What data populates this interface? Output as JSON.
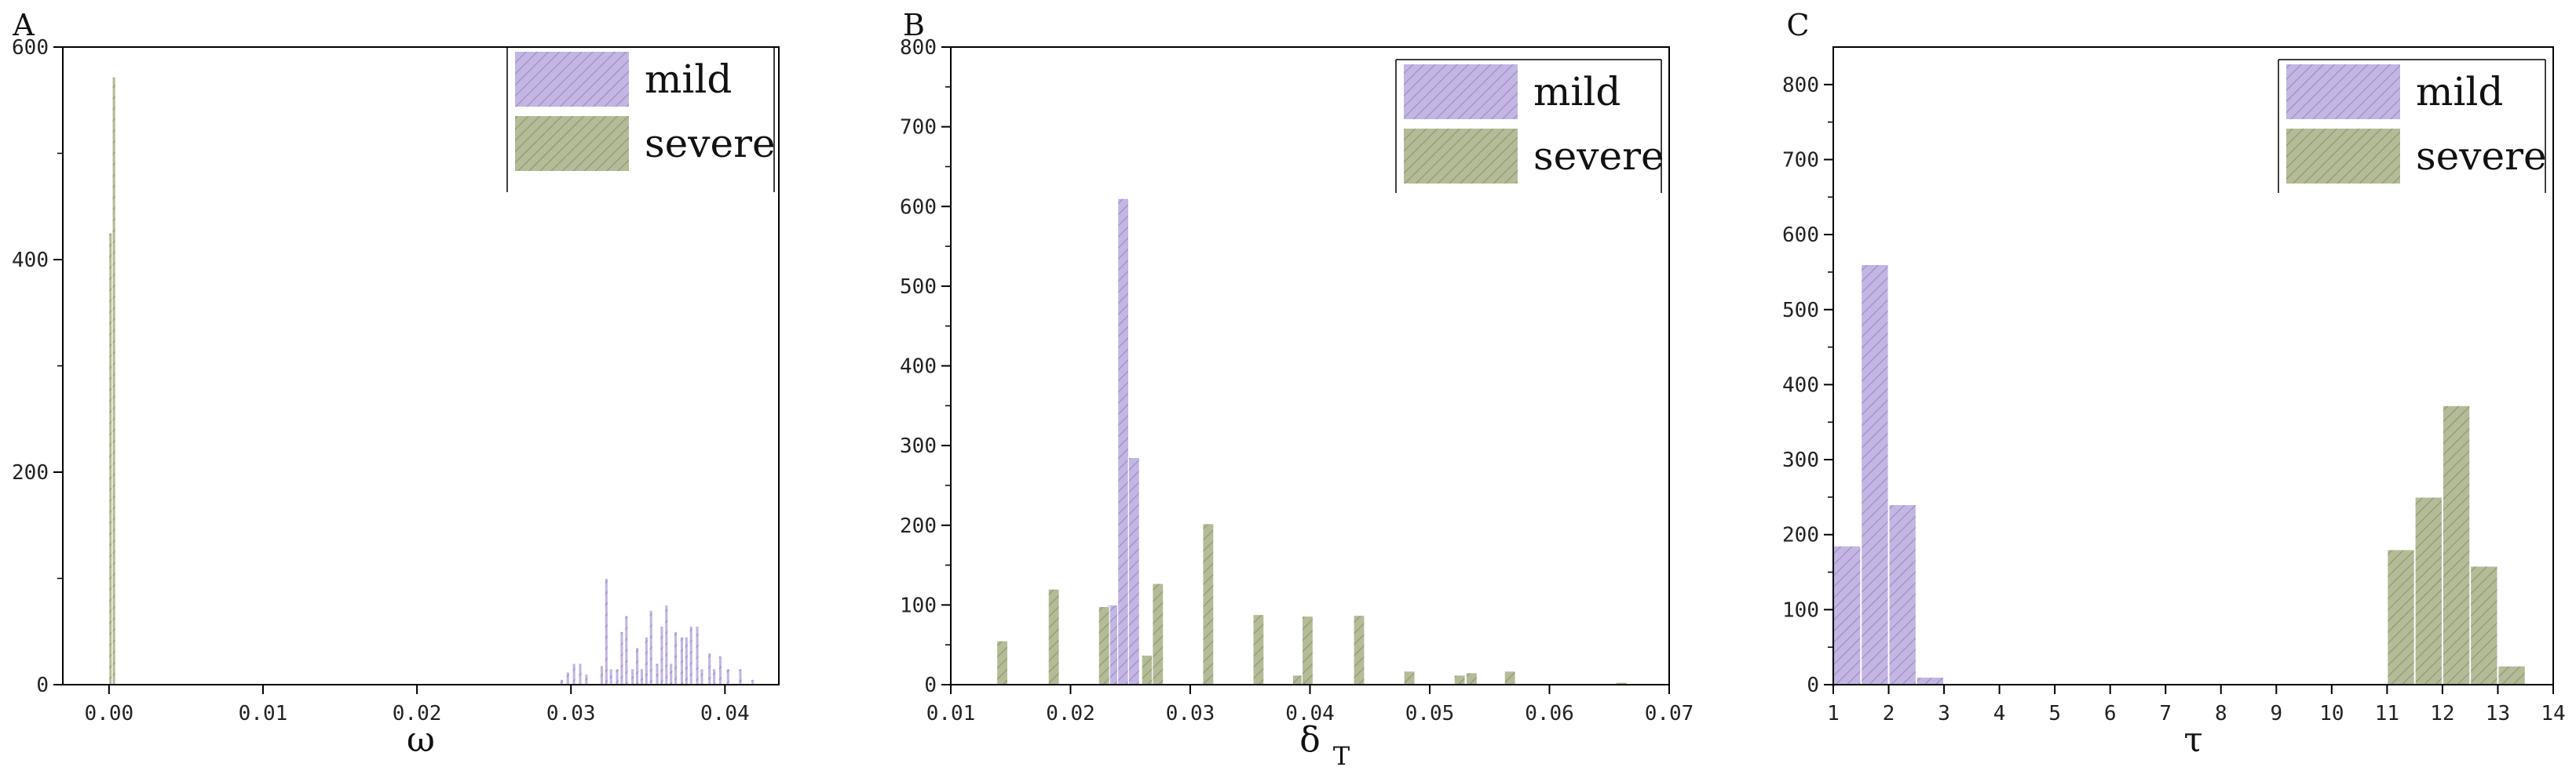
{
  "colors": {
    "mild": "#c3b6e2",
    "mild_hatch": "#9d8dcc",
    "severe": "#b4bb98",
    "severe_hatch": "#8e9a6c",
    "axis": "#000000"
  },
  "legend": {
    "mild": "mild",
    "severe": "severe"
  },
  "chart_data": [
    {
      "type": "bar",
      "panel": "A",
      "xlabel": "ω",
      "xlabel_sub": "",
      "xlim": [
        -0.003,
        0.0435
      ],
      "ylim": [
        0,
        600
      ],
      "xticks": [
        0.0,
        0.01,
        0.02,
        0.03,
        0.04
      ],
      "xtick_labels": [
        "0.00",
        "0.01",
        "0.02",
        "0.03",
        "0.04"
      ],
      "yticks": [
        0,
        200,
        400,
        600
      ],
      "ytick_labels": [
        "0",
        "200",
        "400",
        "600"
      ],
      "legend_position": "top-right",
      "bin_width": 0.00022,
      "series": [
        {
          "name": "severe",
          "x": [
            0.0001,
            0.00032
          ],
          "values": [
            425,
            572
          ]
        },
        {
          "name": "mild",
          "x": [
            0.0294,
            0.0298,
            0.0302,
            0.0306,
            0.031,
            0.032,
            0.0323,
            0.0326,
            0.033,
            0.0333,
            0.0336,
            0.034,
            0.0343,
            0.0346,
            0.0349,
            0.0352,
            0.0356,
            0.0359,
            0.0362,
            0.0365,
            0.0368,
            0.0372,
            0.0375,
            0.0378,
            0.0382,
            0.0385,
            0.039,
            0.0393,
            0.0397,
            0.0402,
            0.041,
            0.0418
          ],
          "values": [
            5,
            12,
            20,
            20,
            10,
            18,
            100,
            15,
            15,
            50,
            65,
            15,
            35,
            15,
            45,
            70,
            20,
            55,
            75,
            20,
            50,
            45,
            45,
            55,
            55,
            15,
            30,
            15,
            27,
            15,
            15,
            5
          ]
        }
      ]
    },
    {
      "type": "bar",
      "panel": "B",
      "xlabel": "δ",
      "xlabel_sub": "T",
      "xlim": [
        0.01,
        0.07
      ],
      "ylim": [
        0,
        800
      ],
      "xticks": [
        0.01,
        0.02,
        0.03,
        0.04,
        0.05,
        0.06,
        0.07
      ],
      "xtick_labels": [
        "0.01",
        "0.02",
        "0.03",
        "0.04",
        "0.05",
        "0.06",
        "0.07"
      ],
      "yticks": [
        0,
        100,
        200,
        300,
        400,
        500,
        600,
        700,
        800
      ],
      "ytick_labels": [
        "0",
        "100",
        "200",
        "300",
        "400",
        "500",
        "600",
        "700",
        "800"
      ],
      "legend_position": "top-right",
      "bin_width": 0.00092,
      "series": [
        {
          "name": "mild",
          "x": [
            0.0235,
            0.0244,
            0.0253
          ],
          "values": [
            100,
            610,
            285
          ]
        },
        {
          "name": "severe",
          "x": [
            0.0143,
            0.0186,
            0.0228,
            0.0264,
            0.0273,
            0.0315,
            0.0357,
            0.039,
            0.0398,
            0.0441,
            0.0483,
            0.0525,
            0.0535,
            0.0567,
            0.066
          ],
          "values": [
            55,
            120,
            98,
            37,
            127,
            202,
            88,
            12,
            86,
            87,
            17,
            12,
            15,
            17,
            3
          ]
        }
      ]
    },
    {
      "type": "bar",
      "panel": "C",
      "xlabel": "τ",
      "xlabel_sub": "",
      "xlim": [
        1,
        14
      ],
      "ylim": [
        0,
        850
      ],
      "xticks": [
        1,
        2,
        3,
        4,
        5,
        6,
        7,
        8,
        9,
        10,
        11,
        12,
        13,
        14
      ],
      "xtick_labels": [
        "1",
        "2",
        "3",
        "4",
        "5",
        "6",
        "7",
        "8",
        "9",
        "10",
        "11",
        "12",
        "13",
        "14"
      ],
      "yticks": [
        0,
        100,
        200,
        300,
        400,
        500,
        600,
        700,
        800
      ],
      "ytick_labels": [
        "0",
        "100",
        "200",
        "300",
        "400",
        "500",
        "600",
        "700",
        "800"
      ],
      "legend_position": "top-right",
      "bin_width": 0.49,
      "series": [
        {
          "name": "mild",
          "x": [
            1.25,
            1.75,
            2.25,
            2.75
          ],
          "values": [
            185,
            560,
            240,
            10
          ]
        },
        {
          "name": "severe",
          "x": [
            11.25,
            11.75,
            12.25,
            12.75,
            13.25
          ],
          "values": [
            180,
            250,
            372,
            158,
            25
          ]
        }
      ]
    }
  ]
}
